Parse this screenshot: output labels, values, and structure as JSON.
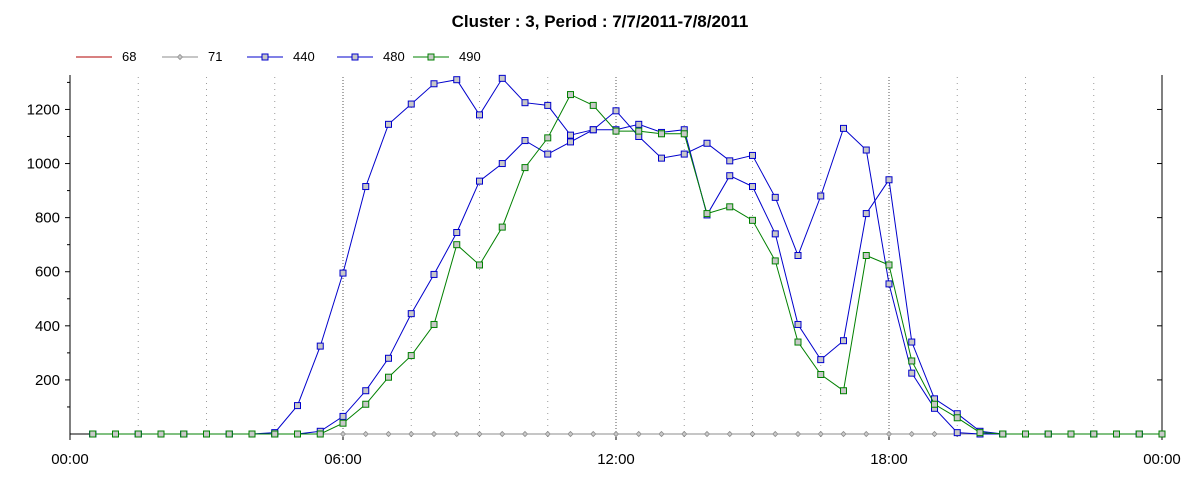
{
  "chart_data": {
    "type": "line",
    "title": "Cluster : 3, Period : 7/7/2011-7/8/2011",
    "xlabel": "",
    "ylabel": "",
    "x_range_hours": [
      0,
      24
    ],
    "ylim": [
      0,
      1320
    ],
    "x_tick_labels": [
      "00:00",
      "06:00",
      "12:00",
      "18:00",
      "00:00"
    ],
    "y_ticks": [
      200,
      400,
      600,
      800,
      1000,
      1200
    ],
    "grid": true,
    "legend_position": "top-left",
    "time_unit": "hours",
    "x": [
      0.5,
      1,
      1.5,
      2,
      2.5,
      3,
      3.5,
      4,
      4.5,
      5,
      5.5,
      6,
      6.5,
      7,
      7.5,
      8,
      8.5,
      9,
      9.5,
      10,
      10.5,
      11,
      11.5,
      12,
      12.5,
      13,
      13.5,
      14,
      14.5,
      15,
      15.5,
      16,
      16.5,
      17,
      17.5,
      18,
      18.5,
      19,
      19.5,
      20,
      20.5,
      21,
      21.5,
      22,
      22.5,
      23,
      23.5,
      24
    ],
    "series": [
      {
        "name": "68",
        "color": "#b00000",
        "marker": "none",
        "values": [
          0,
          0,
          0,
          0,
          0,
          0,
          0,
          0,
          0,
          0,
          0,
          0,
          0,
          0,
          0,
          0,
          0,
          0,
          0,
          0,
          0,
          0,
          0,
          0,
          0,
          0,
          0,
          0,
          0,
          0,
          0,
          0,
          0,
          0,
          0,
          0,
          0,
          0,
          0,
          0,
          0,
          0,
          0,
          0,
          0,
          0,
          0,
          0
        ]
      },
      {
        "name": "71",
        "color": "#8c8c8c",
        "marker": "diamond",
        "values": [
          0,
          0,
          0,
          0,
          0,
          0,
          0,
          0,
          0,
          0,
          0,
          0,
          0,
          0,
          0,
          0,
          0,
          0,
          0,
          0,
          0,
          0,
          0,
          0,
          0,
          0,
          0,
          0,
          0,
          0,
          0,
          0,
          0,
          0,
          0,
          0,
          0,
          0,
          0,
          0,
          0,
          0,
          0,
          0,
          0,
          0,
          0,
          0
        ]
      },
      {
        "name": "440",
        "color": "#0000cc",
        "marker": "square",
        "values": [
          0,
          0,
          0,
          0,
          0,
          0,
          0,
          0,
          5,
          105,
          325,
          595,
          915,
          1145,
          1220,
          1295,
          1310,
          1180,
          1315,
          1225,
          1215,
          1105,
          1125,
          1125,
          1145,
          1115,
          1125,
          810,
          955,
          915,
          740,
          405,
          275,
          345,
          815,
          940,
          340,
          130,
          75,
          10,
          0,
          0,
          0,
          0,
          0,
          0,
          0,
          0
        ]
      },
      {
        "name": "480",
        "color": "#0000cc",
        "marker": "square",
        "values": [
          0,
          0,
          0,
          0,
          0,
          0,
          0,
          0,
          0,
          0,
          10,
          65,
          160,
          280,
          445,
          590,
          745,
          935,
          1000,
          1085,
          1035,
          1080,
          1125,
          1195,
          1100,
          1020,
          1035,
          1075,
          1010,
          1030,
          875,
          660,
          880,
          1130,
          1050,
          555,
          225,
          95,
          5,
          0,
          0,
          0,
          0,
          0,
          0,
          0,
          0,
          0
        ]
      },
      {
        "name": "490",
        "color": "#008000",
        "marker": "square",
        "values": [
          0,
          0,
          0,
          0,
          0,
          0,
          0,
          0,
          0,
          0,
          0,
          40,
          110,
          210,
          290,
          405,
          700,
          625,
          765,
          985,
          1095,
          1255,
          1215,
          1120,
          1120,
          1110,
          1110,
          815,
          840,
          790,
          640,
          340,
          220,
          160,
          660,
          625,
          270,
          110,
          60,
          5,
          0,
          0,
          0,
          0,
          0,
          0,
          0,
          0
        ]
      }
    ]
  }
}
